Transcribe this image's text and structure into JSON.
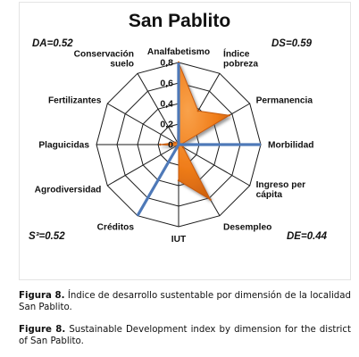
{
  "chart_data": {
    "type": "radar",
    "title": "San Pablito",
    "categories": [
      "Analfabetismo",
      "Índice pobreza",
      "Permanencia",
      "Morbilidad",
      "Ingreso per cápita",
      "Desempleo",
      "IUT",
      "Créditos",
      "Agrodiversidad",
      "Plaguicidas",
      "Fertilizantes",
      "Conservación suelo"
    ],
    "rlim": [
      0,
      0.8
    ],
    "ticks": [
      "0",
      "0,2",
      "0,4",
      "0,6",
      "0,8"
    ],
    "tick_values": [
      0,
      0.2,
      0.4,
      0.6,
      0.8
    ],
    "series": [
      {
        "color": "#f07d1a",
        "values": [
          0.8,
          0.38,
          0.57,
          0.02,
          0.05,
          0.62,
          0.35,
          0.0,
          0.02,
          0.18,
          0.04,
          0.02
        ]
      }
    ],
    "highlight_axes": [
      {
        "category": "Analfabetismo",
        "value": 0.8
      },
      {
        "category": "Morbilidad",
        "value": 0.8
      },
      {
        "category": "Créditos",
        "value": 0.8
      }
    ],
    "annotations": {
      "top_left": "DA=0.52",
      "top_right": "DS=0.59",
      "bottom_left": "S³=0.52",
      "bottom_right": "DE=0.44"
    },
    "colors": {
      "fill": "#f07d1a",
      "fill_light": "#f9a24b",
      "fill_dark": "#c55a0b",
      "highlight": "#4e79b8",
      "grid": "#1a1a1a"
    }
  },
  "captions": {
    "es_label": "Figura 8.",
    "es_text": "Índice de desarrollo sustentable por dimensión de la localidad San Pablito.",
    "en_label": "Figure 8.",
    "en_text": "Sustainable Development index by dimension for the district of San Pablito."
  }
}
